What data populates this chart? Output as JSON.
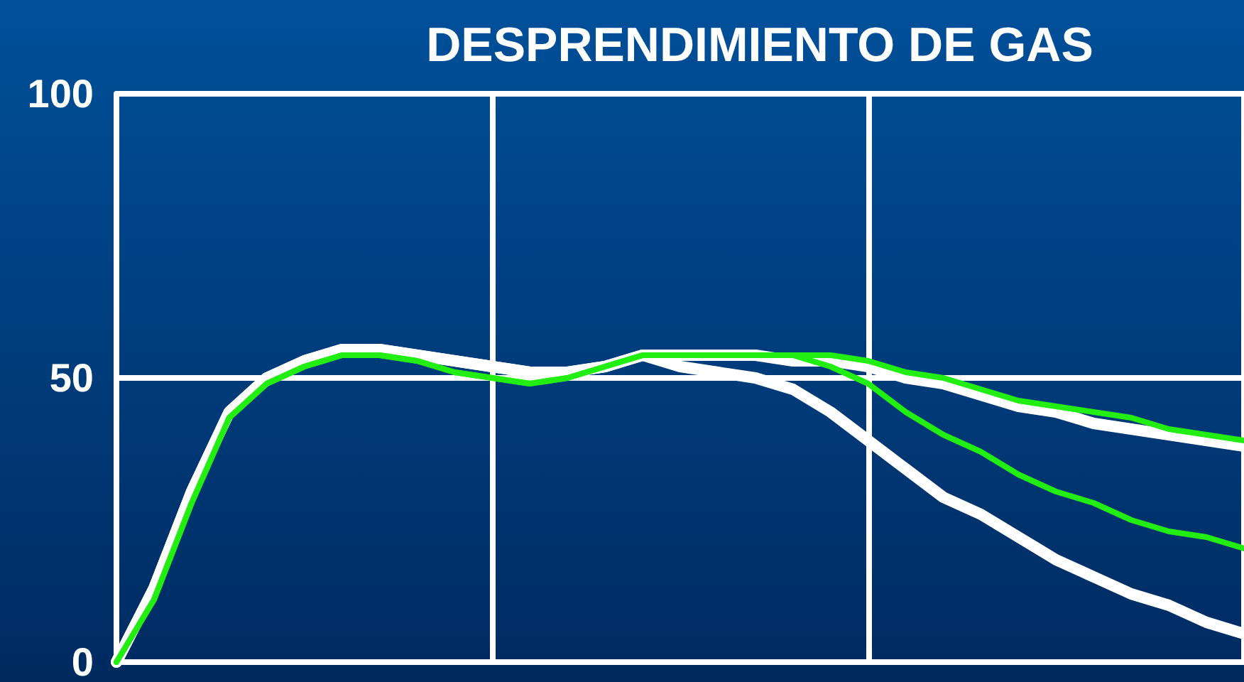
{
  "chart_data": {
    "type": "line",
    "title": "DESPRENDIMIENTO DE GAS",
    "categories": [
      null,
      null,
      null,
      null,
      null,
      null,
      null,
      null,
      null,
      null,
      null,
      null,
      null,
      null,
      null,
      null,
      null,
      null,
      null,
      null,
      null,
      null,
      null,
      null,
      null,
      null,
      null,
      null,
      null,
      null,
      null
    ],
    "series": [
      {
        "color": "#ffffff",
        "values": [
          0,
          13,
          30,
          44,
          50,
          53,
          55,
          55,
          54,
          53,
          52,
          51,
          51,
          52,
          54,
          54,
          54,
          54,
          53,
          53,
          52,
          50,
          49,
          47,
          45,
          44,
          42,
          41,
          40,
          39,
          38
        ]
      },
      {
        "color": "#ffffff",
        "values": [
          0,
          13,
          30,
          44,
          50,
          53,
          55,
          55,
          54,
          53,
          52,
          51,
          51,
          52,
          54,
          52,
          51,
          50,
          48,
          44,
          39,
          34,
          29,
          26,
          22,
          18,
          15,
          12,
          10,
          7,
          5
        ]
      },
      {
        "color": "#22ee11",
        "values": [
          0,
          11,
          28,
          43,
          49,
          52,
          54,
          54,
          53,
          51,
          50,
          49,
          50,
          52,
          54,
          54,
          54,
          54,
          54,
          54,
          53,
          51,
          50,
          48,
          46,
          45,
          44,
          43,
          41,
          40,
          39
        ]
      },
      {
        "color": "#22ee11",
        "values": [
          0,
          11,
          28,
          43,
          49,
          52,
          54,
          54,
          53,
          51,
          50,
          49,
          50,
          52,
          54,
          54,
          54,
          54,
          54,
          52,
          49,
          44,
          40,
          37,
          33,
          30,
          28,
          25,
          23,
          22,
          20
        ]
      }
    ],
    "ylim": [
      0,
      100
    ],
    "yticks": [
      0,
      50,
      100
    ],
    "grid": true,
    "tick_labels": "y",
    "marker": "none",
    "line_style": "solid"
  }
}
